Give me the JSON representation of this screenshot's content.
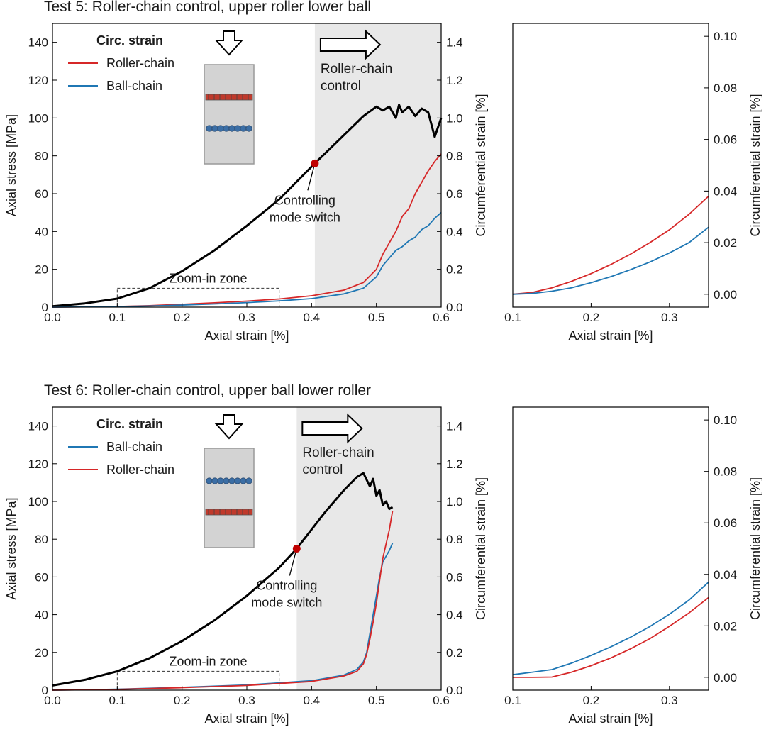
{
  "colors": {
    "stress": "#000000",
    "roller": "#d62728",
    "ball": "#1f77b4",
    "shade": "#e8e8e8",
    "specimen": "#d3d3d3",
    "roller_chain_fill": "#c0392b",
    "ball_chain_fill": "#3b6ea5",
    "switch_marker": "#c00000"
  },
  "chart_data": [
    {
      "id": "test5",
      "type": "line",
      "title": "Test 5: Roller-chain control, upper roller lower ball",
      "xlabel": "Axial strain [%]",
      "ylabel": "Axial stress [MPa]",
      "y2label": "Circumferential strain [%]",
      "xlim": [
        0.0,
        0.6
      ],
      "ylim": [
        0,
        150
      ],
      "y2lim": [
        0,
        1.5
      ],
      "xticks": [
        "0.0",
        "0.1",
        "0.2",
        "0.3",
        "0.4",
        "0.5",
        "0.6"
      ],
      "yticks": [
        "0",
        "20",
        "40",
        "60",
        "80",
        "100",
        "120",
        "140"
      ],
      "y2ticks": [
        "0.0",
        "0.2",
        "0.4",
        "0.6",
        "0.8",
        "1.0",
        "1.2",
        "1.4"
      ],
      "legend_title": "Circ. strain",
      "legend_position": "top-left",
      "control_region": {
        "x_start": 0.405,
        "x_end": 0.6,
        "label_line1": "Roller-chain",
        "label_line2": "control"
      },
      "switch_point": {
        "x": 0.405,
        "y": 76,
        "label_line1": "Controlling",
        "label_line2": "mode switch"
      },
      "zoom_zone": {
        "x": [
          0.1,
          0.35
        ],
        "y": [
          0,
          10
        ],
        "label": "Zoom-in zone"
      },
      "specimen_order": [
        "roller",
        "ball"
      ],
      "series": [
        {
          "name": "Axial stress",
          "axis": "left",
          "color_key": "stress",
          "x": [
            0.0,
            0.05,
            0.1,
            0.15,
            0.2,
            0.25,
            0.3,
            0.35,
            0.405,
            0.45,
            0.48,
            0.5,
            0.51,
            0.52,
            0.53,
            0.535,
            0.54,
            0.55,
            0.56,
            0.57,
            0.58,
            0.59,
            0.6
          ],
          "y": [
            0.5,
            2,
            4.5,
            10,
            19,
            30,
            43,
            57,
            76,
            91,
            101,
            106,
            104,
            106,
            100,
            107,
            103,
            106,
            101,
            105,
            103,
            90,
            100
          ]
        },
        {
          "name": "Roller-chain",
          "axis": "right",
          "color_key": "roller",
          "x": [
            0.0,
            0.1,
            0.15,
            0.2,
            0.25,
            0.3,
            0.35,
            0.4,
            0.45,
            0.48,
            0.5,
            0.51,
            0.52,
            0.53,
            0.54,
            0.55,
            0.56,
            0.57,
            0.58,
            0.59,
            0.6
          ],
          "y": [
            0.0,
            0.003,
            0.008,
            0.015,
            0.023,
            0.032,
            0.043,
            0.06,
            0.09,
            0.13,
            0.2,
            0.28,
            0.34,
            0.4,
            0.48,
            0.52,
            0.6,
            0.66,
            0.72,
            0.77,
            0.81
          ]
        },
        {
          "name": "Ball-chain",
          "axis": "right",
          "color_key": "ball",
          "x": [
            0.0,
            0.1,
            0.15,
            0.2,
            0.25,
            0.3,
            0.35,
            0.4,
            0.45,
            0.48,
            0.5,
            0.51,
            0.52,
            0.53,
            0.54,
            0.55,
            0.56,
            0.57,
            0.58,
            0.59,
            0.6
          ],
          "y": [
            0.0,
            0.003,
            0.006,
            0.011,
            0.017,
            0.024,
            0.033,
            0.045,
            0.07,
            0.1,
            0.16,
            0.22,
            0.26,
            0.3,
            0.32,
            0.35,
            0.37,
            0.41,
            0.43,
            0.47,
            0.5
          ]
        }
      ]
    },
    {
      "id": "test5-zoom",
      "type": "line",
      "title": "",
      "xlabel": "Axial strain [%]",
      "y2label": "Circumferential strain [%]",
      "xlim": [
        0.1,
        0.35
      ],
      "ylim": [
        -0.005,
        0.105
      ],
      "xticks": [
        "0.1",
        "0.2",
        "0.3"
      ],
      "y2ticks": [
        "0.00",
        "0.02",
        "0.04",
        "0.06",
        "0.08",
        "0.10"
      ],
      "series": [
        {
          "name": "Roller-chain",
          "color_key": "roller",
          "x": [
            0.1,
            0.125,
            0.15,
            0.175,
            0.2,
            0.225,
            0.25,
            0.275,
            0.3,
            0.325,
            0.35
          ],
          "y": [
            0.0,
            0.0007,
            0.0025,
            0.005,
            0.008,
            0.0115,
            0.0155,
            0.02,
            0.025,
            0.031,
            0.038
          ]
        },
        {
          "name": "Ball-chain",
          "color_key": "ball",
          "x": [
            0.1,
            0.125,
            0.15,
            0.175,
            0.2,
            0.225,
            0.25,
            0.275,
            0.3,
            0.325,
            0.35
          ],
          "y": [
            0.0,
            0.0003,
            0.0012,
            0.0025,
            0.0045,
            0.0068,
            0.0095,
            0.0125,
            0.016,
            0.02,
            0.026
          ]
        }
      ]
    },
    {
      "id": "test6",
      "type": "line",
      "title": "Test 6: Roller-chain control, upper ball lower roller",
      "xlabel": "Axial strain [%]",
      "ylabel": "Axial stress [MPa]",
      "y2label": "Circumferential strain [%]",
      "xlim": [
        0.0,
        0.6
      ],
      "ylim": [
        0,
        150
      ],
      "y2lim": [
        0,
        1.5
      ],
      "xticks": [
        "0.0",
        "0.1",
        "0.2",
        "0.3",
        "0.4",
        "0.5",
        "0.6"
      ],
      "yticks": [
        "0",
        "20",
        "40",
        "60",
        "80",
        "100",
        "120",
        "140"
      ],
      "y2ticks": [
        "0.0",
        "0.2",
        "0.4",
        "0.6",
        "0.8",
        "1.0",
        "1.2",
        "1.4"
      ],
      "legend_title": "Circ. strain",
      "legend_position": "top-left",
      "control_region": {
        "x_start": 0.377,
        "x_end": 0.6,
        "label_line1": "Roller-chain",
        "label_line2": "control"
      },
      "switch_point": {
        "x": 0.377,
        "y": 75,
        "label_line1": "Controlling",
        "label_line2": "mode switch"
      },
      "zoom_zone": {
        "x": [
          0.1,
          0.35
        ],
        "y": [
          0,
          10
        ],
        "label": "Zoom-in zone"
      },
      "specimen_order": [
        "ball",
        "roller"
      ],
      "series": [
        {
          "name": "Ball-chain",
          "axis": "right",
          "color_key": "ball",
          "x": [
            0.0,
            0.1,
            0.2,
            0.3,
            0.4,
            0.45,
            0.47,
            0.48,
            0.485,
            0.49,
            0.495,
            0.5,
            0.505,
            0.51,
            0.52,
            0.525
          ],
          "y": [
            0.0,
            0.005,
            0.015,
            0.028,
            0.05,
            0.08,
            0.11,
            0.15,
            0.2,
            0.3,
            0.4,
            0.5,
            0.6,
            0.68,
            0.74,
            0.78
          ]
        },
        {
          "name": "Roller-chain",
          "axis": "right",
          "color_key": "roller",
          "x": [
            0.0,
            0.1,
            0.2,
            0.3,
            0.4,
            0.45,
            0.47,
            0.48,
            0.485,
            0.49,
            0.495,
            0.5,
            0.505,
            0.51,
            0.52,
            0.525
          ],
          "y": [
            0.0,
            0.004,
            0.013,
            0.025,
            0.046,
            0.075,
            0.1,
            0.14,
            0.19,
            0.27,
            0.36,
            0.46,
            0.58,
            0.7,
            0.85,
            0.95
          ]
        },
        {
          "name": "Axial stress",
          "axis": "left",
          "color_key": "stress",
          "x": [
            0.0,
            0.05,
            0.1,
            0.15,
            0.2,
            0.25,
            0.3,
            0.35,
            0.377,
            0.42,
            0.45,
            0.47,
            0.48,
            0.49,
            0.495,
            0.5,
            0.505,
            0.51,
            0.515,
            0.52,
            0.525
          ],
          "y": [
            2.5,
            5.5,
            10,
            17,
            26,
            37,
            50,
            65,
            75,
            94,
            106,
            113,
            115,
            108,
            112,
            103,
            106,
            98,
            100,
            96,
            97
          ]
        }
      ]
    },
    {
      "id": "test6-zoom",
      "type": "line",
      "title": "",
      "xlabel": "Axial strain [%]",
      "y2label": "Circumferential strain [%]",
      "xlim": [
        0.1,
        0.35
      ],
      "ylim": [
        -0.005,
        0.105
      ],
      "xticks": [
        "0.1",
        "0.2",
        "0.3"
      ],
      "y2ticks": [
        "0.00",
        "0.02",
        "0.04",
        "0.06",
        "0.08",
        "0.10"
      ],
      "series": [
        {
          "name": "Ball-chain",
          "color_key": "ball",
          "x": [
            0.1,
            0.125,
            0.15,
            0.175,
            0.2,
            0.225,
            0.25,
            0.275,
            0.3,
            0.325,
            0.35
          ],
          "y": [
            0.001,
            0.002,
            0.003,
            0.0055,
            0.0085,
            0.0118,
            0.0155,
            0.0197,
            0.0245,
            0.03,
            0.037
          ]
        },
        {
          "name": "Roller-chain",
          "color_key": "roller",
          "x": [
            0.1,
            0.125,
            0.15,
            0.175,
            0.2,
            0.225,
            0.25,
            0.275,
            0.3,
            0.325,
            0.35
          ],
          "y": [
            0.0,
            0.0,
            0.0001,
            0.002,
            0.0045,
            0.0075,
            0.011,
            0.015,
            0.0198,
            0.025,
            0.031
          ]
        }
      ]
    }
  ]
}
